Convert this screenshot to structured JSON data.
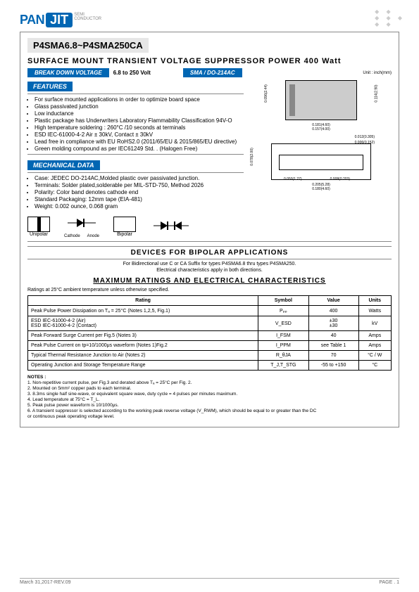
{
  "logo": {
    "pan": "PAN",
    "jit": "JIT",
    "sub1": "SEMI",
    "sub2": "CONDUCTOR"
  },
  "part_title": "P4SMA6.8~P4SMA250CA",
  "subtitle": "SURFACE  MOUNT  TRANSIENT  VOLTAGE  SUPPRESSOR  POWER  400 Watt",
  "pills": {
    "breakdown": "BREAK DOWN VOLTAGE",
    "range": "6.8  to  250 Volt",
    "package": "SMA / DO-214AC",
    "unit": "Unit : inch(mm)"
  },
  "features_head": "FEATURES",
  "features": [
    "For surface mounted applications in order to optimize board space",
    "Glass passivated junction",
    "Low inductance",
    "Plastic package has Underwriters Laboratory Flammability Classification 94V-O",
    "High temperature soldering : 260°C /10 seconds at terminals",
    "ESD IEC-61000-4-2 Air ± 30kV, Contact ± 30kV",
    "Lead free in compliance with EU RoHS2.0 (2011/65/EU & 2015/865/EU directive)",
    "Green molding compound as per IEC61249 Std. . (Halogen Free)"
  ],
  "mech_head": "MECHANICAL DATA",
  "mech": [
    "Case: JEDEC DO-214AC,Molded plastic over passivated junction.",
    "Terminals: Solder plated,solderable per MIL-STD-750, Method 2026",
    "Polarity: Color band denotes cathode end",
    "Standard Packaging: 12mm tape (EIA-481)",
    "Weight: 0.002 ounce, 0.068 gram"
  ],
  "dims": {
    "a": "0.114(2.90)",
    "b": "0.181(4.60)",
    "c": "0.157(4.00)",
    "d": "0.096(2.44)",
    "e": "0.078(2.00)",
    "f": "0.080(1.52)",
    "g": "0.050(1.27)",
    "h": "0.008(0.203)",
    "i": "0.006(0.152)",
    "j": "0.012(0.305)",
    "k": "0.205(5.28)",
    "l": "0.180(4.60)"
  },
  "sym": {
    "uni": "Unipolar",
    "bi": "Bipolar",
    "cat": "Cathode",
    "an": "Anode"
  },
  "bipolar_head": "DEVICES  FOR  BIPOLAR  APPLICATIONS",
  "bipolar_note1": "For Bidirectional use C or CA Suffix for types P4SMA6.8 thru types P4SMA250.",
  "bipolar_note2": "Electrical characteristics apply in both directions.",
  "max_head": "MAXIMUM  RATINGS  AND  ELECTRICAL  CHARACTERISTICS",
  "max_note": "Ratings at 25°C ambient temperature unless otherwise specified.",
  "table": {
    "headers": [
      "Rating",
      "Symbol",
      "Value",
      "Units"
    ],
    "rows": [
      [
        "Peak Pulse Power Dissipation on Tₐ = 25°C (Notes 1,2,5, Fig.1)",
        "Pₚₚ",
        "400",
        "Watts"
      ],
      [
        "ESD IEC-61000-4-2 (Air)\nESD IEC-61000-4-2 (Contact)",
        "V_ESD",
        "±30\n±30",
        "kV"
      ],
      [
        "Peak Forward Surge Current per Fig.5 (Notes 3)",
        "I_FSM",
        "40",
        "Amps"
      ],
      [
        "Peak Pulse Current on tp=10/1000μs waveform (Notes 1)Fig.2",
        "I_PPM",
        "see Table 1",
        "Amps"
      ],
      [
        "Typical Thermal Resistance Junction to Air (Notes 2)",
        "R_θJA",
        "70",
        "°C / W"
      ],
      [
        "Operating Junction and Storage Temperature Range",
        "T_J,T_STG",
        "-55 to +150",
        "°C"
      ]
    ]
  },
  "notes_head": "NOTES :",
  "notes": [
    "1. Non-repetitive current pulse, per Fig.3 and derated above Tₐ = 25°C per Fig. 2.",
    "2. Mounted on 5mm² copper pads to each terminal.",
    "3. 8.3ms single half sine-wave, or equivalent square wave, duty cycle = 4 pulses per minutes maximum.",
    "4. Lead temperature at 75°C = T_L.",
    "5. Peak pulse power waveform is 10/1000μs.",
    "6. A transient suppressor is selected according to the working peak reverse voltage (V_RWM), which should be equal to or greater than the DC",
    "   or continuous peak operating voltage level."
  ],
  "footer": {
    "left": "March 31,2017-REV.09",
    "right": "PAGE  . 1"
  }
}
